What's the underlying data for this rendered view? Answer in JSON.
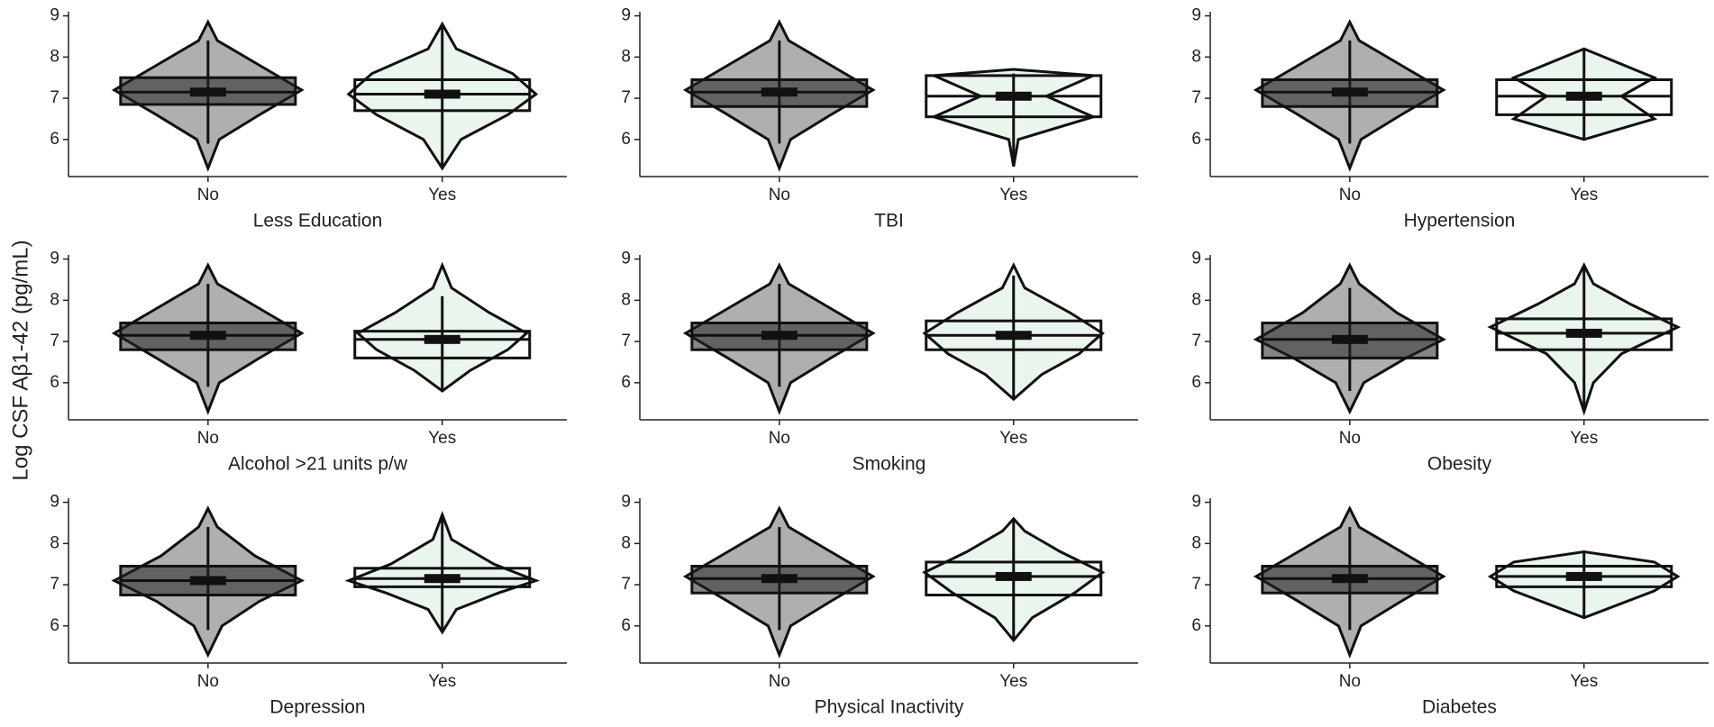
{
  "y_label": "Log CSF Aβ1-42 (pg/mL)",
  "chart_data": [
    {
      "type": "violin",
      "xlabel": "Less Education",
      "categories": [
        "No",
        "Yes"
      ],
      "colors": [
        "#a6a6a6",
        "#eaf5ee"
      ],
      "ylim": [
        5.1,
        9.1
      ],
      "yticks": [
        6,
        7,
        8,
        9
      ],
      "violins": [
        {
          "y": [
            5.3,
            6.0,
            6.6,
            7.2,
            7.8,
            8.4,
            8.85
          ],
          "width": [
            0,
            0.12,
            0.55,
            1.0,
            0.55,
            0.1,
            0
          ]
        },
        {
          "y": [
            5.3,
            6.0,
            6.6,
            7.1,
            7.6,
            8.2,
            8.8
          ],
          "width": [
            0,
            0.2,
            0.7,
            1.0,
            0.75,
            0.15,
            0
          ]
        }
      ],
      "boxes": [
        {
          "low": 5.9,
          "q1": 6.85,
          "median": 7.15,
          "q3": 7.5,
          "high": 8.4
        },
        {
          "low": 5.3,
          "q1": 6.7,
          "median": 7.1,
          "q3": 7.45,
          "high": 8.8
        }
      ]
    },
    {
      "type": "violin",
      "xlabel": "TBI",
      "categories": [
        "No",
        "Yes"
      ],
      "colors": [
        "#a6a6a6",
        "#eaf5ee"
      ],
      "ylim": [
        5.1,
        9.1
      ],
      "yticks": [
        6,
        7,
        8,
        9
      ],
      "violins": [
        {
          "y": [
            5.3,
            6.0,
            6.6,
            7.2,
            7.8,
            8.4,
            8.85
          ],
          "width": [
            0,
            0.12,
            0.55,
            1.0,
            0.55,
            0.1,
            0
          ]
        },
        {
          "y": [
            5.35,
            6.0,
            6.55,
            7.05,
            7.55,
            7.7
          ],
          "width": [
            0,
            0.05,
            0.85,
            0.35,
            0.85,
            0
          ]
        }
      ],
      "boxes": [
        {
          "low": 5.9,
          "q1": 6.8,
          "median": 7.15,
          "q3": 7.45,
          "high": 8.4
        },
        {
          "low": 5.35,
          "q1": 6.55,
          "median": 7.05,
          "q3": 7.55,
          "high": 7.6
        }
      ]
    },
    {
      "type": "violin",
      "xlabel": "Hypertension",
      "categories": [
        "No",
        "Yes"
      ],
      "colors": [
        "#a6a6a6",
        "#eaf5ee"
      ],
      "ylim": [
        5.1,
        9.1
      ],
      "yticks": [
        6,
        7,
        8,
        9
      ],
      "violins": [
        {
          "y": [
            5.3,
            6.0,
            6.6,
            7.2,
            7.8,
            8.4,
            8.85
          ],
          "width": [
            0,
            0.12,
            0.55,
            1.0,
            0.55,
            0.1,
            0
          ]
        },
        {
          "y": [
            6.0,
            6.5,
            7.05,
            7.5,
            8.2
          ],
          "width": [
            0,
            0.75,
            0.4,
            0.75,
            0
          ]
        }
      ],
      "boxes": [
        {
          "low": 5.9,
          "q1": 6.8,
          "median": 7.15,
          "q3": 7.45,
          "high": 8.4
        },
        {
          "low": 6.0,
          "q1": 6.6,
          "median": 7.05,
          "q3": 7.45,
          "high": 8.2
        }
      ]
    },
    {
      "type": "violin",
      "xlabel": "Alcohol >21 units p/w",
      "categories": [
        "No",
        "Yes"
      ],
      "colors": [
        "#a6a6a6",
        "#eaf5ee"
      ],
      "ylim": [
        5.1,
        9.1
      ],
      "yticks": [
        6,
        7,
        8,
        9
      ],
      "violins": [
        {
          "y": [
            5.3,
            6.0,
            6.6,
            7.2,
            7.8,
            8.4,
            8.85
          ],
          "width": [
            0,
            0.12,
            0.55,
            1.0,
            0.55,
            0.1,
            0
          ]
        },
        {
          "y": [
            5.8,
            6.3,
            6.8,
            7.2,
            7.7,
            8.3,
            8.85
          ],
          "width": [
            0,
            0.3,
            0.7,
            0.9,
            0.5,
            0.1,
            0
          ]
        }
      ],
      "boxes": [
        {
          "low": 5.9,
          "q1": 6.8,
          "median": 7.15,
          "q3": 7.45,
          "high": 8.4
        },
        {
          "low": 5.8,
          "q1": 6.6,
          "median": 7.05,
          "q3": 7.25,
          "high": 8.1
        }
      ]
    },
    {
      "type": "violin",
      "xlabel": "Smoking",
      "categories": [
        "No",
        "Yes"
      ],
      "colors": [
        "#a6a6a6",
        "#eaf5ee"
      ],
      "ylim": [
        5.1,
        9.1
      ],
      "yticks": [
        6,
        7,
        8,
        9
      ],
      "violins": [
        {
          "y": [
            5.3,
            6.0,
            6.6,
            7.2,
            7.8,
            8.4,
            8.85
          ],
          "width": [
            0,
            0.12,
            0.55,
            1.0,
            0.55,
            0.1,
            0
          ]
        },
        {
          "y": [
            5.6,
            6.2,
            6.7,
            7.2,
            7.7,
            8.3,
            8.85
          ],
          "width": [
            0,
            0.3,
            0.7,
            0.95,
            0.6,
            0.12,
            0
          ]
        }
      ],
      "boxes": [
        {
          "low": 5.9,
          "q1": 6.8,
          "median": 7.15,
          "q3": 7.45,
          "high": 8.4
        },
        {
          "low": 5.6,
          "q1": 6.8,
          "median": 7.15,
          "q3": 7.5,
          "high": 8.6
        }
      ]
    },
    {
      "type": "violin",
      "xlabel": "Obesity",
      "categories": [
        "No",
        "Yes"
      ],
      "colors": [
        "#a6a6a6",
        "#eaf5ee"
      ],
      "ylim": [
        5.1,
        9.1
      ],
      "yticks": [
        6,
        7,
        8,
        9
      ],
      "violins": [
        {
          "y": [
            5.3,
            6.0,
            6.6,
            7.05,
            7.7,
            8.4,
            8.85
          ],
          "width": [
            0,
            0.15,
            0.6,
            1.0,
            0.5,
            0.1,
            0
          ]
        },
        {
          "y": [
            5.3,
            6.0,
            6.7,
            7.35,
            7.9,
            8.4,
            8.85
          ],
          "width": [
            0,
            0.1,
            0.4,
            1.0,
            0.5,
            0.1,
            0
          ]
        }
      ],
      "boxes": [
        {
          "low": 5.8,
          "q1": 6.6,
          "median": 7.05,
          "q3": 7.45,
          "high": 8.3
        },
        {
          "low": 5.3,
          "q1": 6.8,
          "median": 7.2,
          "q3": 7.55,
          "high": 8.8
        }
      ]
    },
    {
      "type": "violin",
      "xlabel": "Depression",
      "categories": [
        "No",
        "Yes"
      ],
      "colors": [
        "#a6a6a6",
        "#eaf5ee"
      ],
      "ylim": [
        5.1,
        9.1
      ],
      "yticks": [
        6,
        7,
        8,
        9
      ],
      "violins": [
        {
          "y": [
            5.3,
            6.0,
            6.6,
            7.1,
            7.7,
            8.4,
            8.85
          ],
          "width": [
            0,
            0.15,
            0.55,
            1.0,
            0.5,
            0.1,
            0
          ]
        },
        {
          "y": [
            5.85,
            6.4,
            6.8,
            7.1,
            7.5,
            8.1,
            8.7
          ],
          "width": [
            0,
            0.15,
            0.6,
            1.0,
            0.55,
            0.1,
            0
          ]
        }
      ],
      "boxes": [
        {
          "low": 5.9,
          "q1": 6.75,
          "median": 7.1,
          "q3": 7.45,
          "high": 8.4
        },
        {
          "low": 5.9,
          "q1": 6.95,
          "median": 7.15,
          "q3": 7.4,
          "high": 8.7
        }
      ]
    },
    {
      "type": "violin",
      "xlabel": "Physical Inactivity",
      "categories": [
        "No",
        "Yes"
      ],
      "colors": [
        "#a6a6a6",
        "#eaf5ee"
      ],
      "ylim": [
        5.1,
        9.1
      ],
      "yticks": [
        6,
        7,
        8,
        9
      ],
      "violins": [
        {
          "y": [
            5.3,
            6.0,
            6.6,
            7.2,
            7.8,
            8.4,
            8.85
          ],
          "width": [
            0,
            0.12,
            0.55,
            1.0,
            0.55,
            0.1,
            0
          ]
        },
        {
          "y": [
            5.65,
            6.2,
            6.8,
            7.3,
            7.8,
            8.3,
            8.6
          ],
          "width": [
            0,
            0.2,
            0.65,
            0.95,
            0.5,
            0.12,
            0
          ]
        }
      ],
      "boxes": [
        {
          "low": 5.9,
          "q1": 6.8,
          "median": 7.15,
          "q3": 7.45,
          "high": 8.4
        },
        {
          "low": 5.7,
          "q1": 6.75,
          "median": 7.2,
          "q3": 7.55,
          "high": 8.6
        }
      ]
    },
    {
      "type": "violin",
      "xlabel": "Diabetes",
      "categories": [
        "No",
        "Yes"
      ],
      "colors": [
        "#a6a6a6",
        "#eaf5ee"
      ],
      "ylim": [
        5.1,
        9.1
      ],
      "yticks": [
        6,
        7,
        8,
        9
      ],
      "violins": [
        {
          "y": [
            5.3,
            6.0,
            6.6,
            7.2,
            7.8,
            8.4,
            8.85
          ],
          "width": [
            0,
            0.12,
            0.55,
            1.0,
            0.55,
            0.1,
            0
          ]
        },
        {
          "y": [
            6.2,
            6.85,
            7.2,
            7.55,
            7.8
          ],
          "width": [
            0,
            0.75,
            1.0,
            0.75,
            0
          ]
        }
      ],
      "boxes": [
        {
          "low": 5.9,
          "q1": 6.8,
          "median": 7.15,
          "q3": 7.45,
          "high": 8.4
        },
        {
          "low": 6.2,
          "q1": 6.95,
          "median": 7.2,
          "q3": 7.45,
          "high": 7.8
        }
      ]
    }
  ]
}
